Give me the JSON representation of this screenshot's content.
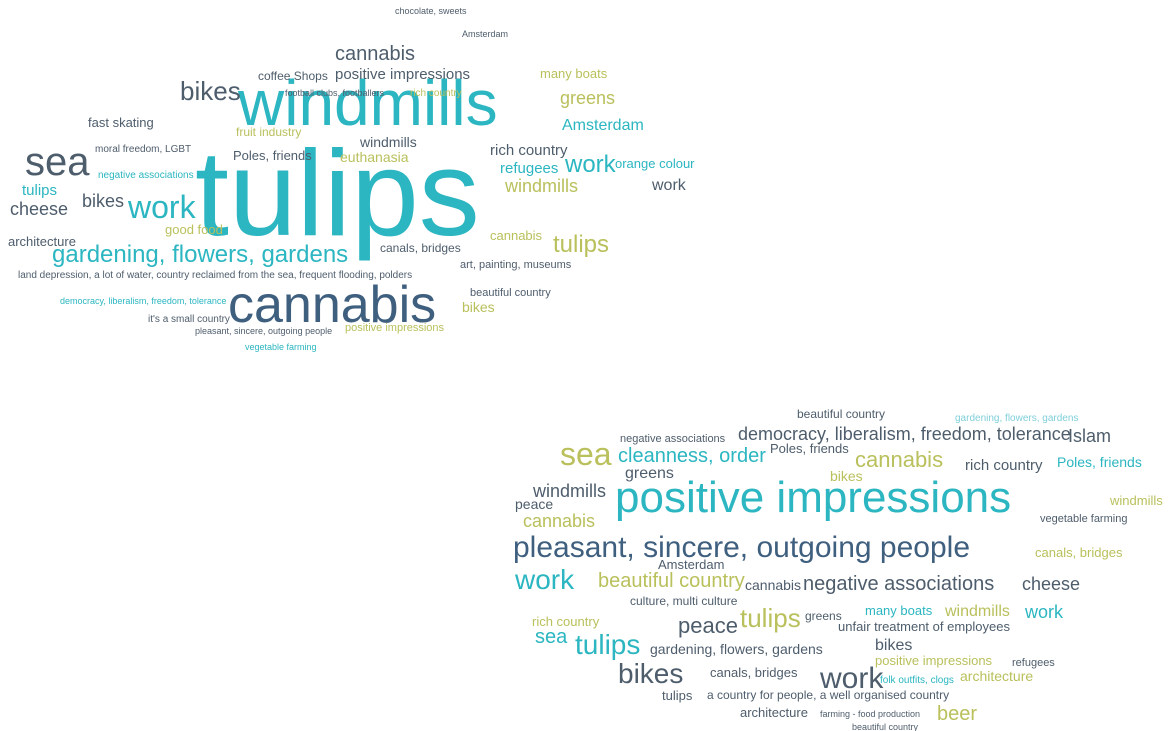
{
  "clouds": [
    {
      "words": [
        "tulips",
        "windmills",
        "cannabis",
        "sea",
        "gardening, flowers, gardens",
        "work",
        "bikes",
        "cannabis",
        "positive impressions",
        "coffee Shops",
        "chocolate, sweets",
        "Amsterdam",
        "football clubs, footballers",
        "rich country",
        "many boats",
        "greens",
        "Amsterdam",
        "fast skating",
        "fruit industry",
        "windmills",
        "rich country",
        "work",
        "refugees",
        "orange colour",
        "Poles, friends",
        "euthanasia",
        "moral freedom, LGBT",
        "negative associations",
        "tulips",
        "windmills",
        "work",
        "cheese",
        "bikes",
        "architecture",
        "good food",
        "cannabis",
        "tulips",
        "canals, bridges",
        "art, painting, museums",
        "land depression, a lot of water, country reclaimed from the sea, frequent flooding, polders",
        "beautiful country",
        "bikes",
        "democracy, liberalism, freedom, tolerance",
        "it's a small country",
        "pleasant, sincere, outgoing people",
        "positive impressions",
        "vegetable farming"
      ]
    },
    {
      "words": [
        "positive impressions",
        "pleasant, sincere, outgoing people",
        "democracy, liberalism, freedom, tolerance",
        "Islam",
        "beautiful country",
        "gardening, flowers, gardens",
        "negative associations",
        "sea",
        "cleanness, order",
        "cannabis",
        "rich country",
        "Poles, friends",
        "greens",
        "windmills",
        "bikes",
        "Poles, friends",
        "peace",
        "cannabis",
        "windmills",
        "vegetable farming",
        "work",
        "beautiful country",
        "cannabis",
        "negative associations",
        "cheese",
        "canals, bridges",
        "Amsterdam",
        "culture, multi culture",
        "many boats",
        "windmills",
        "work",
        "peace",
        "tulips",
        "greens",
        "unfair treatment of employees",
        "rich country",
        "sea",
        "tulips",
        "gardening, flowers, gardens",
        "bikes",
        "positive impressions",
        "refugees",
        "bikes",
        "canals, bridges",
        "work",
        "folk outfits, clogs",
        "architecture",
        "tulips",
        "a country for people, a well organised country",
        "architecture",
        "farming - food production",
        "beer",
        "beautiful country"
      ]
    }
  ]
}
